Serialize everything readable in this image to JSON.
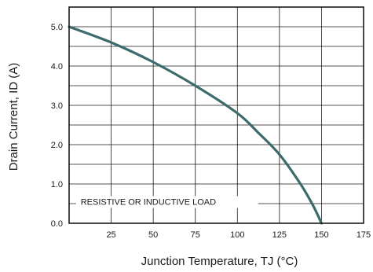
{
  "chart_data": {
    "type": "line",
    "title": "",
    "xlabel": "Junction Temperature, TJ (°C)",
    "ylabel": "Drain Current, ID (A)",
    "xlim": [
      0,
      175
    ],
    "ylim": [
      0,
      5.5
    ],
    "x_ticks": [
      25,
      50,
      75,
      100,
      125,
      150,
      175
    ],
    "x_tick_labels": [
      "25",
      "50",
      "75",
      "100",
      "125",
      "150",
      "175"
    ],
    "y_ticks": [
      0,
      1,
      2,
      3,
      4,
      5
    ],
    "y_tick_labels": [
      "0.0",
      "1.0",
      "2.0",
      "3.0",
      "4.0",
      "5.0"
    ],
    "grid": true,
    "series": [
      {
        "color": "#3d6b6b",
        "x": [
          0,
          25,
          50,
          75,
          100,
          112.5,
          125,
          137.5,
          145,
          150
        ],
        "y": [
          5.0,
          4.6,
          4.1,
          3.5,
          2.8,
          2.3,
          1.75,
          1.0,
          0.45,
          0.0
        ]
      }
    ],
    "annotations": [
      {
        "text": "RESISTIVE OR INDUCTIVE LOAD",
        "x": 5,
        "y": 0.55
      }
    ]
  }
}
